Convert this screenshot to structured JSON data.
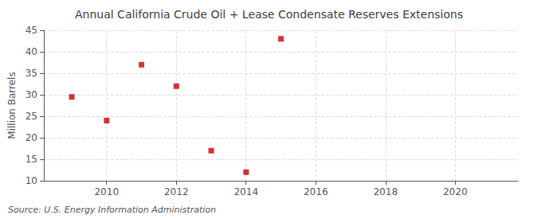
{
  "chart_data": {
    "type": "scatter",
    "title": "Annual California Crude Oil + Lease Condensate Reserves Extensions",
    "ylabel": "Million Barrels",
    "source": "Source: U.S. Energy Information Administration",
    "x": [
      2009,
      2010,
      2011,
      2012,
      2013,
      2014,
      2015
    ],
    "values": [
      29.5,
      24.0,
      37.0,
      32.0,
      17.0,
      12.0,
      43.0
    ],
    "color": "#cc0000",
    "marker": "square",
    "xlim": [
      2008.2,
      2021.8
    ],
    "xticks": [
      2010,
      2012,
      2014,
      2016,
      2018,
      2020
    ],
    "ylim": [
      10,
      45
    ],
    "yticks": [
      10,
      15,
      20,
      25,
      30,
      35,
      40,
      45
    ],
    "grid": true
  }
}
